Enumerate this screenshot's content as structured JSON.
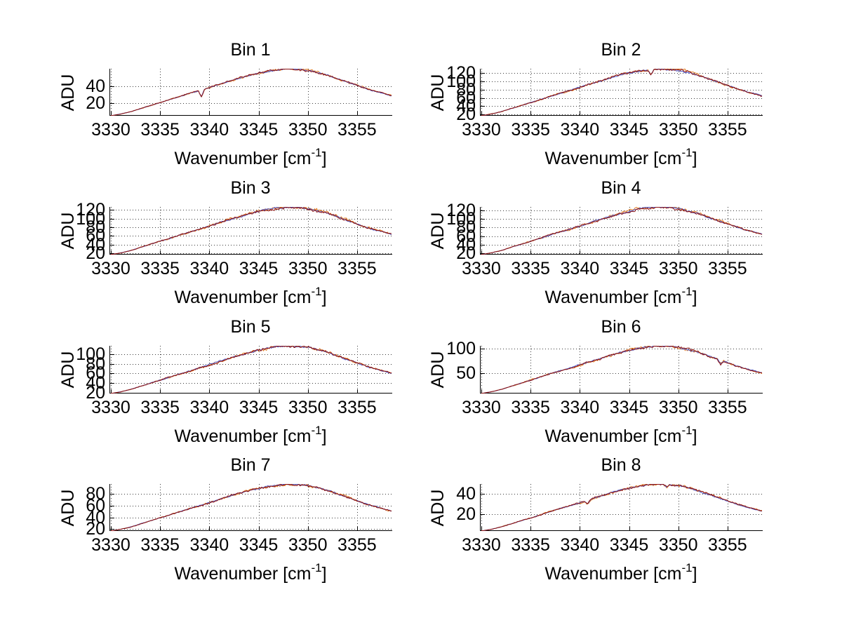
{
  "figure": {
    "background": "#ffffff",
    "text_color": "#000000",
    "axis_color": "#000000",
    "grid_color": "#3a3a3a",
    "line_names": [
      "spectrum-orange",
      "spectrum-blue",
      "spectrum-darkred"
    ],
    "line_colors": [
      "#e0761a",
      "#4a55c4",
      "#8c1111"
    ]
  },
  "labels": {
    "xlabel_base": "Wavenumber [cm",
    "xlabel_sup": "-1",
    "xlabel_close": "]",
    "ylabel": "ADU"
  },
  "chart_data": {
    "type": "line",
    "xlabel": "Wavenumber [cm^-1]",
    "ylabel": "ADU",
    "grid": true,
    "grid_style": "dotted",
    "xlim": [
      3329.86,
      3358.5
    ],
    "xticks": [
      3330,
      3335,
      3340,
      3345,
      3350,
      3355
    ],
    "x": [
      3330,
      3331,
      3332,
      3333,
      3334,
      3335,
      3336,
      3337,
      3338,
      3339,
      3340,
      3341,
      3342,
      3343,
      3344,
      3345,
      3346,
      3347,
      3348,
      3349,
      3350,
      3351,
      3352,
      3353,
      3354,
      3355,
      3356,
      3357,
      3358,
      3358.5
    ],
    "subplots": [
      {
        "title": "Bin 1",
        "ylim": [
          5,
          61
        ],
        "yticks": [
          20,
          40
        ],
        "noise": 0.9,
        "values": [
          5,
          7.1,
          9.8,
          13.5,
          17,
          20.7,
          24.3,
          28.1,
          31.7,
          35.1,
          38.7,
          42.5,
          46.1,
          49.7,
          53,
          55.8,
          58.1,
          59.9,
          60.9,
          60.6,
          59.2,
          56.6,
          53.3,
          49.2,
          45.3,
          41.2,
          37.1,
          33.5,
          30.4,
          28.9
        ],
        "spikes": [
          {
            "x": 3339.2,
            "depth": 8.5
          }
        ]
      },
      {
        "title": "Bin 2",
        "ylim": [
          17,
          130
        ],
        "yticks": [
          20,
          40,
          60,
          80,
          100,
          120
        ],
        "noise": 2.2,
        "values": [
          17,
          21.2,
          26.6,
          34.1,
          41.3,
          48.6,
          55.9,
          63.7,
          70.9,
          77.7,
          84.9,
          92.7,
          99.9,
          107.2,
          113.9,
          119.6,
          124.2,
          127.9,
          129.8,
          129.2,
          126.3,
          121.2,
          114.4,
          106.2,
          98.4,
          90.1,
          81.7,
          74.5,
          68.3,
          65.3
        ],
        "spikes": [
          {
            "x": 3347.2,
            "depth": 12.5
          }
        ]
      },
      {
        "title": "Bin 3",
        "ylim": [
          17,
          127
        ],
        "yticks": [
          20,
          40,
          60,
          80,
          100,
          120
        ],
        "noise": 2.2,
        "values": [
          17,
          21.1,
          26.4,
          33.6,
          40.7,
          47.8,
          54.8,
          62.4,
          69.5,
          76.1,
          83.1,
          90.7,
          97.7,
          104.8,
          111.4,
          116.9,
          121.4,
          124.9,
          126.8,
          126.2,
          123.4,
          118.4,
          111.8,
          103.8,
          96.2,
          88.2,
          80,
          73,
          66.9,
          64
        ],
        "spikes": []
      },
      {
        "title": "Bin 4",
        "ylim": [
          17,
          128
        ],
        "yticks": [
          20,
          40,
          60,
          80,
          100,
          120
        ],
        "noise": 2.2,
        "values": [
          17,
          21.1,
          26.4,
          33.8,
          40.9,
          48.1,
          55.2,
          62.8,
          70,
          76.6,
          83.7,
          91.4,
          98.5,
          105.6,
          112.2,
          117.8,
          122.3,
          125.9,
          127.8,
          127.2,
          124.3,
          119.3,
          112.7,
          104.6,
          96.9,
          88.8,
          80.6,
          73.5,
          67.4,
          64.4
        ],
        "spikes": []
      },
      {
        "title": "Bin 5",
        "ylim": [
          18,
          118
        ],
        "yticks": [
          20,
          40,
          60,
          80,
          100
        ],
        "noise": 2.0,
        "values": [
          18,
          21.7,
          26.5,
          33.1,
          39.5,
          46,
          52.4,
          59.3,
          65.7,
          71.7,
          78.1,
          85,
          91.4,
          97.8,
          103.8,
          108.8,
          112.9,
          116.1,
          117.8,
          117.3,
          114.7,
          110.2,
          104.2,
          96.9,
          90,
          82.7,
          75.3,
          68.9,
          63.4,
          60.7
        ],
        "spikes": []
      },
      {
        "title": "Bin 6",
        "ylim": [
          8,
          106
        ],
        "yticks": [
          50,
          100
        ],
        "noise": 1.8,
        "values": [
          8,
          11.6,
          16.3,
          22.8,
          29.1,
          35.4,
          41.7,
          48.5,
          54.7,
          60.6,
          66.9,
          73.7,
          79.9,
          86.2,
          92.1,
          97,
          101,
          104.1,
          105.8,
          105.3,
          102.8,
          98.4,
          92.5,
          85.3,
          78.6,
          71.4,
          64.2,
          57.9,
          52.5,
          49.8
        ],
        "spikes": [
          {
            "x": 3354.3,
            "depth": 7
          }
        ]
      },
      {
        "title": "Bin 7",
        "ylim": [
          17,
          97
        ],
        "yticks": [
          20,
          40,
          60,
          80
        ],
        "noise": 1.4,
        "values": [
          17,
          20,
          23.8,
          29.1,
          34.2,
          39.4,
          44.5,
          50,
          55.2,
          60,
          65.1,
          70.6,
          75.7,
          80.8,
          85.6,
          89.6,
          92.9,
          95.5,
          96.8,
          96.4,
          94.4,
          90.8,
          86,
          80.1,
          74.6,
          68.8,
          62.8,
          57.7,
          53.3,
          51.2
        ],
        "spikes": []
      },
      {
        "title": "Bin 8",
        "ylim": [
          3,
          49.5
        ],
        "yticks": [
          20,
          40
        ],
        "noise": 0.8,
        "values": [
          3,
          4.7,
          7,
          10,
          13,
          16,
          19,
          22.2,
          25.2,
          28,
          30.9,
          34.2,
          37.1,
          40.1,
          42.9,
          45.2,
          47.1,
          48.6,
          49.4,
          49.2,
          48,
          45.9,
          43.1,
          39.7,
          36.5,
          33.1,
          29.6,
          26.7,
          24.1,
          22.9
        ],
        "spikes": [
          {
            "x": 3340.8,
            "depth": 3.5
          },
          {
            "x": 3348.8,
            "depth": 3
          }
        ]
      }
    ]
  }
}
